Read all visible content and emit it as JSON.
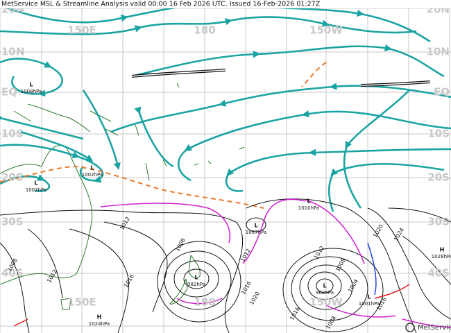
{
  "map": {
    "title": "MetService MSL & Streamline Analysis valid 00:00 16 Feb 2026 UTC. Issued 16-Feb-2026 01:27Z",
    "lat_labels": [
      "20N",
      "10N",
      "EQ",
      "10S",
      "20S",
      "30S",
      "40S"
    ],
    "lon_labels": [
      "150E",
      "180",
      "150W"
    ],
    "systems": [
      {
        "symbol": "L",
        "pressure": "1008hPa"
      },
      {
        "symbol": "L",
        "pressure": "1002hPa"
      },
      {
        "symbol": "L",
        "pressure": "1002hPa"
      },
      {
        "symbol": "L",
        "pressure": "1010hPa"
      },
      {
        "symbol": "L",
        "pressure": "1007hPa"
      },
      {
        "symbol": "L",
        "pressure": "982hPa"
      },
      {
        "symbol": "L",
        "pressure": "962hPa"
      },
      {
        "symbol": "L",
        "pressure": "1001hPa"
      },
      {
        "symbol": "H",
        "pressure": "1028hPa"
      },
      {
        "symbol": "H",
        "pressure": "1024hPa"
      }
    ],
    "isobar_labels": [
      "1012",
      "1016",
      "1008",
      "1012",
      "1008",
      "1012",
      "1016",
      "1020",
      "1012",
      "1008",
      "1004",
      "1016",
      "1008",
      "1020",
      "1024",
      "1016"
    ],
    "logo": "MetService"
  }
}
